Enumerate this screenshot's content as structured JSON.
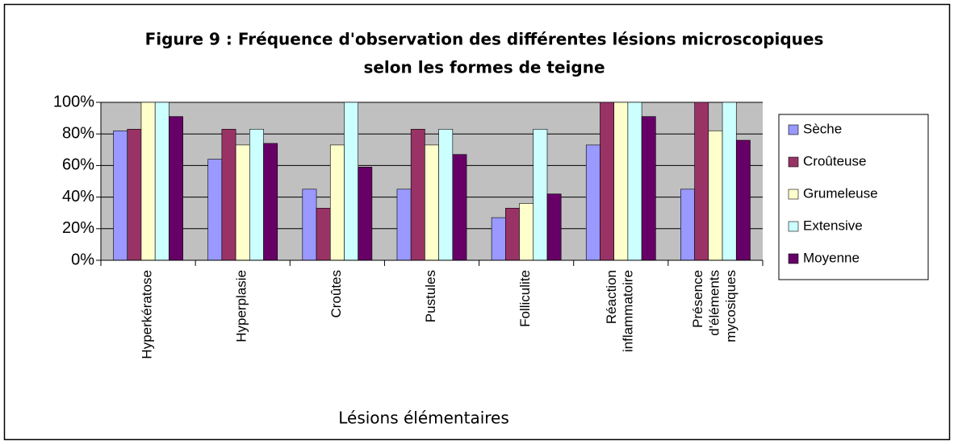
{
  "chart_data": {
    "type": "bar",
    "title": [
      "Figure 9 : Fréquence d'observation des différentes lésions microscopiques",
      "selon les formes de teigne"
    ],
    "x_label": "Lésions élémentaires",
    "categories": [
      "Hyperkératose",
      "Hyperplasie",
      "Croûtes",
      "Pustules",
      "Folliculite",
      "Réaction inflammatoire",
      "Présence d'éléments mycosiques"
    ],
    "series": [
      {
        "name": "Sèche",
        "color": "#9999ff",
        "values": [
          82,
          64,
          45,
          45,
          27,
          73,
          45
        ]
      },
      {
        "name": "Croûteuse",
        "color": "#993366",
        "values": [
          83,
          83,
          33,
          83,
          33,
          100,
          100
        ]
      },
      {
        "name": "Grumeleuse",
        "color": "#ffffcc",
        "values": [
          100,
          73,
          73,
          73,
          36,
          100,
          82
        ]
      },
      {
        "name": "Extensive",
        "color": "#ccffff",
        "values": [
          100,
          83,
          100,
          83,
          83,
          100,
          100
        ]
      },
      {
        "name": "Moyenne",
        "color": "#660066",
        "values": [
          91,
          74,
          59,
          67,
          42,
          91,
          76
        ]
      }
    ],
    "ylim": [
      0,
      100
    ],
    "yticks": [
      {
        "value": 0,
        "label": "0%"
      },
      {
        "value": 20,
        "label": "20%"
      },
      {
        "value": 40,
        "label": "40%"
      },
      {
        "value": 60,
        "label": "60%"
      },
      {
        "value": 80,
        "label": "80%"
      },
      {
        "value": 100,
        "label": "100%"
      }
    ],
    "grid": true,
    "legend": "right"
  }
}
